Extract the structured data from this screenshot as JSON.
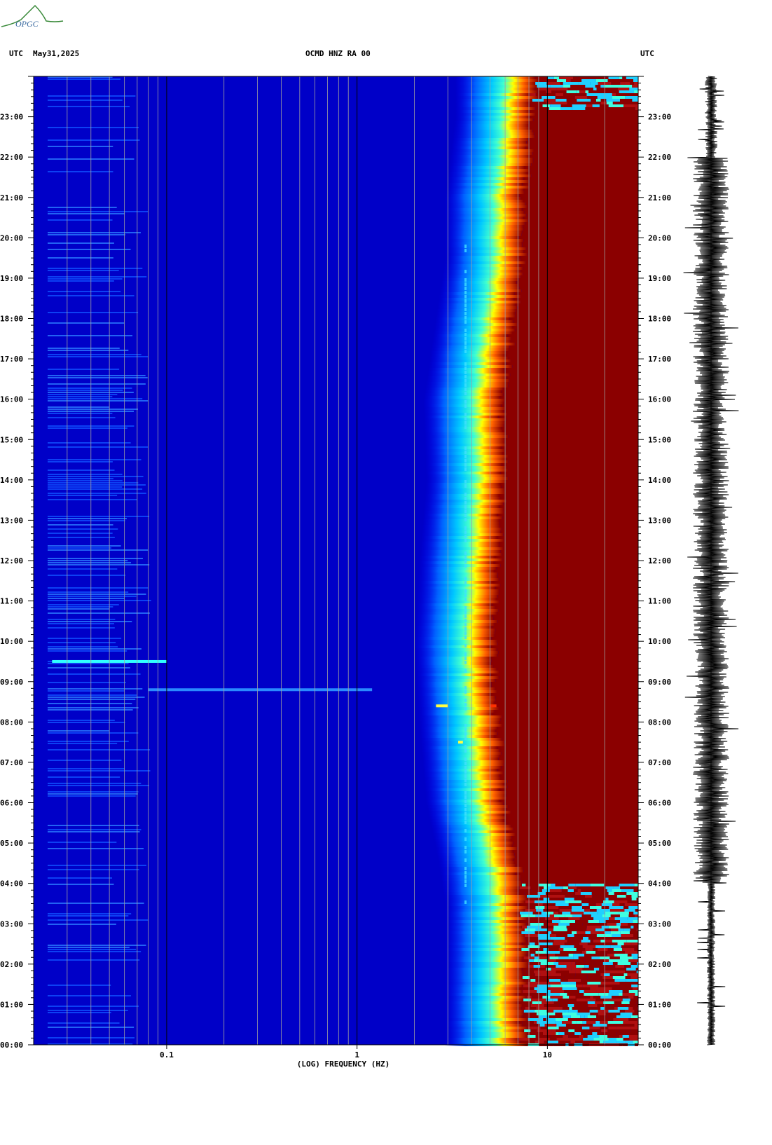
{
  "header": {
    "left_tz": "UTC",
    "date": "May31,2025",
    "station": "OCMD HNZ RA 00",
    "right_tz": "UTC"
  },
  "logo": {
    "text": "OPGC",
    "color": "#3a8a3a",
    "icon": "opgc-logo"
  },
  "chart_data": {
    "type": "heatmap",
    "subtype": "spectrogram",
    "xlabel": "(LOG) FREQUENCY (HZ)",
    "xscale": "log",
    "xlim": [
      0.02,
      30
    ],
    "xticks": [
      0.1,
      1,
      10
    ],
    "xtick_labels": [
      "0.1",
      "1",
      "10"
    ],
    "yaxis": "time UTC (00:00 at bottom, 24:00 at top)",
    "ylim": [
      0,
      24
    ],
    "ytick_labels": [
      "00:00",
      "01:00",
      "02:00",
      "03:00",
      "04:00",
      "05:00",
      "06:00",
      "07:00",
      "08:00",
      "09:00",
      "10:00",
      "11:00",
      "12:00",
      "13:00",
      "14:00",
      "15:00",
      "16:00",
      "17:00",
      "18:00",
      "19:00",
      "20:00",
      "21:00",
      "22:00",
      "23:00"
    ],
    "colormap": [
      "#00008b",
      "#0000ff",
      "#00bfff",
      "#00ffff",
      "#ffff00",
      "#ff8000",
      "#ff0000",
      "#8b0000"
    ],
    "energy_edge": [
      {
        "hour": 0,
        "freq": 7.5
      },
      {
        "hour": 2,
        "freq": 7.5
      },
      {
        "hour": 3.5,
        "freq": 7.5
      },
      {
        "hour": 4.5,
        "freq": 7.0
      },
      {
        "hour": 6,
        "freq": 6.0
      },
      {
        "hour": 8,
        "freq": 5.5
      },
      {
        "hour": 10,
        "freq": 5.2
      },
      {
        "hour": 12,
        "freq": 5.5
      },
      {
        "hour": 14,
        "freq": 6.0
      },
      {
        "hour": 16,
        "freq": 5.8
      },
      {
        "hour": 18,
        "freq": 6.7
      },
      {
        "hour": 19.5,
        "freq": 7.5
      },
      {
        "hour": 21,
        "freq": 7.5
      },
      {
        "hour": 23,
        "freq": 8.5
      },
      {
        "hour": 24,
        "freq": 8.5
      }
    ],
    "saturated_band": {
      "freq_min": 9.5,
      "freq_max": 30,
      "hour_start": 4.0,
      "hour_end": 23.2
    },
    "lines_hz": [
      0.03,
      0.04,
      0.05,
      0.06,
      0.07,
      0.08,
      0.09,
      0.2,
      0.3,
      0.4,
      0.5,
      0.6,
      0.7,
      0.8,
      0.9,
      2,
      3,
      4,
      5,
      6,
      7,
      8,
      9,
      20,
      30
    ],
    "events": [
      {
        "hour": 9.5,
        "fmin": 0.025,
        "fmax": 0.1,
        "level": 0.55
      },
      {
        "hour": 8.8,
        "fmin": 0.08,
        "fmax": 1.2,
        "level": 0.35
      },
      {
        "hour": 8.4,
        "fmin": 2.6,
        "fmax": 3.0,
        "level": 0.8
      },
      {
        "hour": 7.5,
        "fmin": 3.4,
        "fmax": 3.6,
        "level": 0.9
      },
      {
        "hour": 8.4,
        "fmin": 5.0,
        "fmax": 5.4,
        "level": 1.0
      }
    ]
  }
}
